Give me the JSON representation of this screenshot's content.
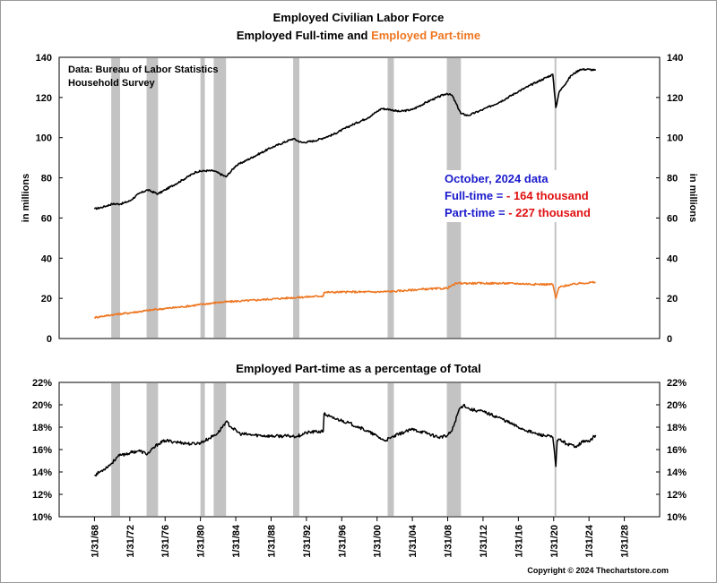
{
  "title_line1": "Employed Civilian Labor Force",
  "title_line2_part1": "Employed Full-time and",
  "title_line2_part2": "Employed Part-time",
  "source_line1": "Data:  Bureau of Labor Statistics",
  "source_line2": "Household Survey",
  "callout": {
    "heading": "October, 2024 data",
    "fulltime_label": "Full-time =",
    "fulltime_value": "- 164 thousand",
    "parttime_label": "Part-time =",
    "parttime_value": "- 227 thousand"
  },
  "copyright": "Copyright © 2024 Thechartstore.com",
  "colors": {
    "fulltime": "#000000",
    "parttime": "#ee7722",
    "recession": "#c3c3c3",
    "callout_blue": "#1a1acc",
    "callout_red": "#e01010",
    "gridline": "#d0d0d0"
  },
  "chart_data": [
    {
      "type": "line",
      "title": "Employed Civilian Labor Force — Employed Full-time and Employed Part-time",
      "ylabel": "in millions",
      "ylim": [
        0,
        140
      ],
      "yticks": [
        0,
        20,
        40,
        60,
        80,
        100,
        120,
        140
      ],
      "grid": false,
      "recessions": [
        [
          1969.9,
          1970.9
        ],
        [
          1973.9,
          1975.2
        ],
        [
          1980.0,
          1980.5
        ],
        [
          1981.5,
          1982.9
        ],
        [
          1990.5,
          1991.2
        ],
        [
          2001.2,
          2001.9
        ],
        [
          2007.9,
          2009.5
        ],
        [
          2020.1,
          2020.3
        ]
      ],
      "series": [
        {
          "name": "Employed Full-time",
          "color": "#000000",
          "x": [
            1968.0,
            1969.0,
            1970.0,
            1971.0,
            1972.0,
            1973.0,
            1974.0,
            1975.2,
            1976.0,
            1978.0,
            1979.5,
            1980.5,
            1981.5,
            1982.9,
            1984.0,
            1986.0,
            1988.0,
            1990.5,
            1991.5,
            1993.0,
            1995.0,
            1997.0,
            1999.0,
            2000.5,
            2001.5,
            2002.5,
            2004.0,
            2006.0,
            2007.9,
            2008.5,
            2009.5,
            2010.3,
            2012.0,
            2014.0,
            2016.0,
            2018.0,
            2019.9,
            2020.25,
            2020.6,
            2021.0,
            2022.0,
            2023.0,
            2024.0,
            2024.75
          ],
          "values": [
            64.5,
            65.5,
            67.0,
            67.0,
            68.5,
            72.0,
            74.0,
            72.0,
            74.0,
            79.0,
            83.0,
            83.5,
            83.5,
            80.5,
            86.0,
            90.5,
            95.0,
            99.5,
            97.5,
            98.5,
            101.5,
            106.0,
            110.0,
            114.5,
            114.0,
            113.0,
            114.0,
            118.5,
            122.0,
            121.0,
            112.0,
            111.0,
            114.0,
            118.0,
            123.0,
            127.5,
            131.5,
            115.0,
            122.5,
            125.0,
            131.0,
            134.0,
            134.0,
            133.5
          ]
        },
        {
          "name": "Employed Part-time",
          "color": "#ee7722",
          "x": [
            1968.0,
            1970.0,
            1972.0,
            1975.0,
            1978.0,
            1982.0,
            1985.0,
            1990.0,
            1993.9,
            1994.0,
            1997.0,
            2000.0,
            2002.0,
            2005.0,
            2007.9,
            2009.0,
            2010.0,
            2012.0,
            2015.0,
            2018.0,
            2019.9,
            2020.25,
            2020.6,
            2021.5,
            2023.0,
            2024.75
          ],
          "values": [
            10.5,
            11.8,
            12.8,
            14.5,
            15.8,
            18.0,
            18.8,
            20.2,
            21.2,
            23.0,
            23.2,
            23.2,
            23.5,
            24.5,
            25.0,
            27.5,
            27.5,
            27.5,
            27.5,
            27.0,
            27.0,
            20.0,
            25.5,
            26.5,
            27.5,
            28.0
          ]
        }
      ]
    },
    {
      "type": "line",
      "title": "Employed Part-time as a percentage of Total",
      "ylim": [
        10,
        22
      ],
      "yticks": [
        "10%",
        "12%",
        "14%",
        "16%",
        "18%",
        "20%",
        "22%"
      ],
      "yvalues": [
        10,
        12,
        14,
        16,
        18,
        20,
        22
      ],
      "grid": false,
      "x_ticks": [
        "1/31/68",
        "1/31/72",
        "1/31/76",
        "1/31/80",
        "1/31/84",
        "1/31/88",
        "1/31/92",
        "1/31/96",
        "1/31/00",
        "1/31/04",
        "1/31/08",
        "1/31/12",
        "1/31/16",
        "1/31/20",
        "1/31/24",
        "1/31/28"
      ],
      "x_tick_values": [
        1968,
        1972,
        1976,
        1980,
        1984,
        1988,
        1992,
        1996,
        2000,
        2004,
        2008,
        2012,
        2016,
        2020,
        2024,
        2028
      ],
      "xlim": [
        1964,
        2032
      ],
      "series": [
        {
          "name": "Employed Part-time as a percentage of Total",
          "color": "#000000",
          "x": [
            1968.0,
            1969.0,
            1970.0,
            1970.5,
            1971.0,
            1972.0,
            1973.0,
            1974.0,
            1975.2,
            1976.0,
            1977.0,
            1978.0,
            1979.0,
            1980.0,
            1981.0,
            1982.0,
            1982.9,
            1983.5,
            1984.5,
            1986.0,
            1988.0,
            1990.0,
            1991.0,
            1992.0,
            1993.0,
            1993.9,
            1994.0,
            1995.0,
            1996.0,
            1998.0,
            2000.0,
            2000.8,
            2001.5,
            2002.5,
            2004.0,
            2005.5,
            2007.0,
            2007.9,
            2008.5,
            2009.3,
            2009.8,
            2010.5,
            2012.0,
            2014.0,
            2016.0,
            2018.0,
            2019.9,
            2020.25,
            2020.4,
            2020.7,
            2021.5,
            2022.5,
            2023.5,
            2024.0,
            2024.75
          ],
          "values": [
            13.7,
            14.2,
            14.8,
            15.3,
            15.5,
            15.7,
            15.9,
            15.6,
            16.5,
            16.8,
            16.7,
            16.6,
            16.5,
            16.6,
            17.0,
            17.5,
            18.5,
            18.0,
            17.4,
            17.3,
            17.2,
            17.2,
            17.2,
            17.5,
            17.6,
            17.6,
            19.2,
            18.8,
            18.6,
            18.0,
            17.2,
            16.8,
            17.0,
            17.4,
            17.8,
            17.5,
            17.1,
            17.2,
            17.7,
            19.6,
            20.0,
            19.6,
            19.4,
            18.8,
            18.0,
            17.4,
            17.1,
            14.5,
            16.8,
            16.9,
            16.5,
            16.3,
            16.8,
            16.7,
            17.3
          ]
        }
      ]
    }
  ]
}
